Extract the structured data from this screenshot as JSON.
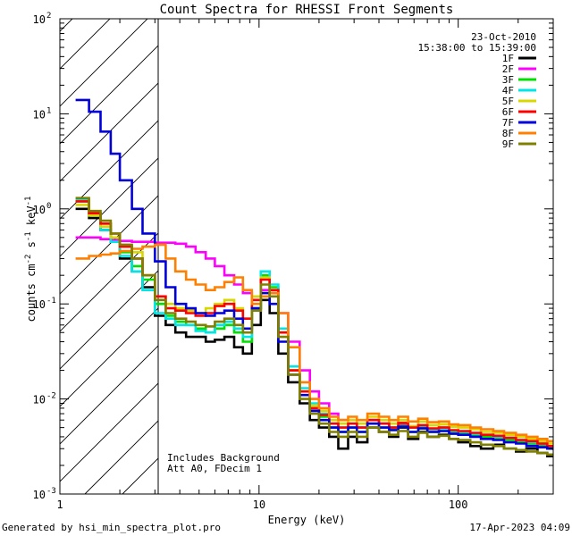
{
  "chart_data": {
    "type": "line",
    "title": "Count Spectra for RHESSI Front Segments",
    "xlabel": "Energy (keV)",
    "ylabel": "counts cm",
    "ylabel_exp1": "-2",
    "ylabel_mid": " s",
    "ylabel_exp2": "-1",
    "ylabel_end": " keV",
    "ylabel_exp3": "-1",
    "x_scale": "log",
    "y_scale": "log",
    "xlim": [
      1,
      300
    ],
    "ylim": [
      0.001,
      100
    ],
    "x_ticks": [
      {
        "value": 1,
        "label": "1"
      },
      {
        "value": 10,
        "label": "10"
      },
      {
        "value": 100,
        "label": "100"
      }
    ],
    "y_ticks": [
      {
        "value": 0.001,
        "base": "10",
        "exp": "-3"
      },
      {
        "value": 0.01,
        "base": "10",
        "exp": "-2"
      },
      {
        "value": 0.1,
        "base": "10",
        "exp": "-1"
      },
      {
        "value": 1,
        "base": "10",
        "exp": "0"
      },
      {
        "value": 10,
        "base": "10",
        "exp": "1"
      },
      {
        "value": 100,
        "base": "10",
        "exp": "2"
      }
    ],
    "hatched_region": [
      1,
      3
    ],
    "date": "23-Oct-2010",
    "time_range": "15:38:00 to 15:39:00",
    "annotations": [
      "Includes Background",
      "Att A0, FDecim 1"
    ],
    "footer_left": "Generated by hsi_min_spectra_plot.pro",
    "footer_right": "17-Apr-2023 04:09",
    "x": [
      1.2,
      1.4,
      1.6,
      1.8,
      2.0,
      2.3,
      2.6,
      3.0,
      3.4,
      3.8,
      4.3,
      4.8,
      5.4,
      6.0,
      6.7,
      7.5,
      8.3,
      9.2,
      10.2,
      11.3,
      12.5,
      14.0,
      16.0,
      18.0,
      20.0,
      22.5,
      25.0,
      28.0,
      31.0,
      35.0,
      40.0,
      45.0,
      50.0,
      56.0,
      63.0,
      70.0,
      80.0,
      90.0,
      100.0,
      115.0,
      130.0,
      150.0,
      170.0,
      195.0,
      220.0,
      250.0,
      280.0,
      300.0
    ],
    "series": [
      {
        "name": "1F",
        "color": "#000000",
        "values": [
          1.0,
          0.8,
          0.6,
          0.45,
          0.3,
          0.22,
          0.15,
          0.075,
          0.06,
          0.05,
          0.045,
          0.045,
          0.04,
          0.042,
          0.045,
          0.035,
          0.03,
          0.06,
          0.11,
          0.08,
          0.03,
          0.015,
          0.009,
          0.006,
          0.005,
          0.004,
          0.003,
          0.004,
          0.0035,
          0.005,
          0.0045,
          0.004,
          0.005,
          0.0038,
          0.0045,
          0.004,
          0.0042,
          0.0038,
          0.0035,
          0.0032,
          0.003,
          0.0033,
          0.003,
          0.0028,
          0.003,
          0.0027,
          0.0025,
          0.0025
        ]
      },
      {
        "name": "2F",
        "color": "#ff00ff",
        "values": [
          0.5,
          0.5,
          0.48,
          0.47,
          0.46,
          0.45,
          0.45,
          0.44,
          0.44,
          0.43,
          0.4,
          0.35,
          0.3,
          0.25,
          0.2,
          0.16,
          0.13,
          0.12,
          0.14,
          0.13,
          0.08,
          0.04,
          0.02,
          0.012,
          0.009,
          0.007,
          0.006,
          0.006,
          0.005,
          0.006,
          0.0055,
          0.005,
          0.0055,
          0.005,
          0.0052,
          0.0048,
          0.005,
          0.0045,
          0.0045,
          0.0042,
          0.004,
          0.004,
          0.0038,
          0.0036,
          0.0034,
          0.0032,
          0.003,
          0.003
        ]
      },
      {
        "name": "3F",
        "color": "#00e000",
        "values": [
          1.2,
          0.9,
          0.7,
          0.5,
          0.35,
          0.25,
          0.18,
          0.1,
          0.075,
          0.065,
          0.06,
          0.055,
          0.05,
          0.055,
          0.06,
          0.05,
          0.04,
          0.09,
          0.2,
          0.15,
          0.05,
          0.02,
          0.012,
          0.008,
          0.0065,
          0.005,
          0.0045,
          0.005,
          0.0045,
          0.0055,
          0.005,
          0.0048,
          0.0052,
          0.0045,
          0.005,
          0.0045,
          0.0046,
          0.0044,
          0.0043,
          0.0041,
          0.004,
          0.0039,
          0.0037,
          0.0035,
          0.0034,
          0.0033,
          0.0031,
          0.003
        ]
      },
      {
        "name": "4F",
        "color": "#00e5e5",
        "values": [
          1.25,
          0.85,
          0.6,
          0.45,
          0.32,
          0.22,
          0.14,
          0.08,
          0.07,
          0.06,
          0.06,
          0.052,
          0.05,
          0.06,
          0.065,
          0.055,
          0.045,
          0.09,
          0.22,
          0.16,
          0.055,
          0.022,
          0.013,
          0.009,
          0.007,
          0.0055,
          0.005,
          0.0055,
          0.005,
          0.006,
          0.0055,
          0.005,
          0.0056,
          0.005,
          0.0052,
          0.0048,
          0.0049,
          0.0046,
          0.0045,
          0.0043,
          0.0042,
          0.004,
          0.0039,
          0.0037,
          0.0035,
          0.0034,
          0.0032,
          0.0031
        ]
      },
      {
        "name": "5F",
        "color": "#d8d800",
        "values": [
          1.1,
          0.85,
          0.65,
          0.5,
          0.4,
          0.35,
          0.2,
          0.12,
          0.1,
          0.09,
          0.085,
          0.08,
          0.09,
          0.1,
          0.11,
          0.09,
          0.07,
          0.12,
          0.19,
          0.14,
          0.05,
          0.02,
          0.012,
          0.0085,
          0.0075,
          0.006,
          0.0055,
          0.006,
          0.0055,
          0.0065,
          0.006,
          0.0055,
          0.006,
          0.0052,
          0.0058,
          0.0053,
          0.0054,
          0.0051,
          0.005,
          0.0048,
          0.0045,
          0.0044,
          0.0042,
          0.004,
          0.0038,
          0.0036,
          0.0034,
          0.0033
        ]
      },
      {
        "name": "6F",
        "color": "#ff0000",
        "values": [
          1.2,
          0.9,
          0.7,
          0.55,
          0.4,
          0.3,
          0.2,
          0.12,
          0.09,
          0.085,
          0.08,
          0.075,
          0.08,
          0.095,
          0.1,
          0.085,
          0.07,
          0.11,
          0.18,
          0.14,
          0.05,
          0.02,
          0.012,
          0.008,
          0.0068,
          0.0055,
          0.005,
          0.0055,
          0.005,
          0.006,
          0.0055,
          0.005,
          0.0056,
          0.005,
          0.0053,
          0.0049,
          0.005,
          0.0047,
          0.0046,
          0.0044,
          0.0042,
          0.0041,
          0.0039,
          0.0037,
          0.0036,
          0.0034,
          0.0032,
          0.0031
        ]
      },
      {
        "name": "7F",
        "color": "#0000dd",
        "values": [
          14.0,
          10.5,
          6.5,
          3.8,
          2.0,
          1.0,
          0.55,
          0.28,
          0.15,
          0.1,
          0.09,
          0.08,
          0.075,
          0.08,
          0.085,
          0.07,
          0.055,
          0.09,
          0.13,
          0.1,
          0.04,
          0.018,
          0.011,
          0.0075,
          0.006,
          0.005,
          0.0045,
          0.005,
          0.0045,
          0.0055,
          0.005,
          0.0047,
          0.0051,
          0.0045,
          0.0049,
          0.0045,
          0.0046,
          0.0043,
          0.0042,
          0.004,
          0.0038,
          0.0037,
          0.0035,
          0.0034,
          0.0032,
          0.0031,
          0.003,
          0.0029
        ]
      },
      {
        "name": "8F",
        "color": "#ff8000",
        "values": [
          0.3,
          0.32,
          0.33,
          0.34,
          0.36,
          0.38,
          0.4,
          0.42,
          0.3,
          0.22,
          0.18,
          0.16,
          0.14,
          0.15,
          0.17,
          0.19,
          0.14,
          0.1,
          0.12,
          0.13,
          0.08,
          0.035,
          0.015,
          0.01,
          0.008,
          0.0065,
          0.006,
          0.0065,
          0.006,
          0.007,
          0.0065,
          0.006,
          0.0065,
          0.0058,
          0.0062,
          0.0057,
          0.0058,
          0.0054,
          0.0053,
          0.005,
          0.0048,
          0.0046,
          0.0044,
          0.0042,
          0.004,
          0.0038,
          0.0036,
          0.0035
        ]
      },
      {
        "name": "9F",
        "color": "#808000",
        "values": [
          1.3,
          0.95,
          0.75,
          0.55,
          0.42,
          0.3,
          0.2,
          0.11,
          0.08,
          0.07,
          0.065,
          0.06,
          0.058,
          0.065,
          0.07,
          0.06,
          0.05,
          0.085,
          0.16,
          0.12,
          0.045,
          0.018,
          0.01,
          0.007,
          0.0055,
          0.0045,
          0.004,
          0.0045,
          0.004,
          0.005,
          0.0045,
          0.0042,
          0.0046,
          0.004,
          0.0044,
          0.004,
          0.0041,
          0.0038,
          0.0037,
          0.0035,
          0.0033,
          0.0032,
          0.003,
          0.0029,
          0.0028,
          0.0027,
          0.0026,
          0.0025
        ]
      }
    ]
  }
}
